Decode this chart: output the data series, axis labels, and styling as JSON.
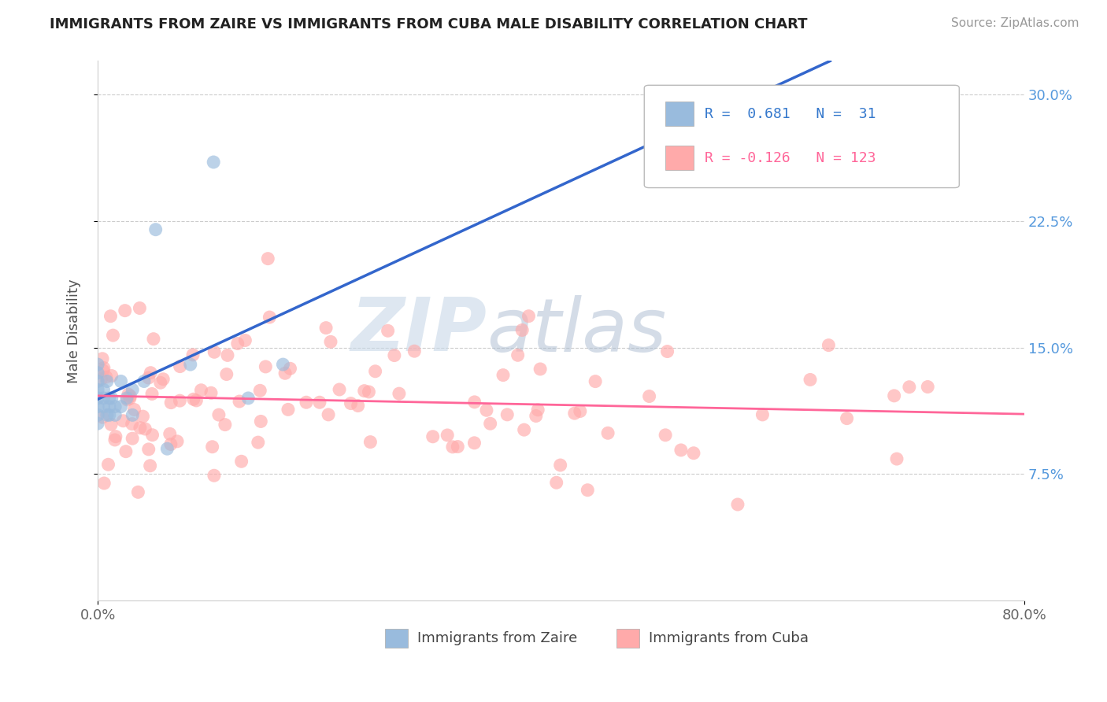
{
  "title": "IMMIGRANTS FROM ZAIRE VS IMMIGRANTS FROM CUBA MALE DISABILITY CORRELATION CHART",
  "source": "Source: ZipAtlas.com",
  "ylabel": "Male Disability",
  "x_min": 0.0,
  "x_max": 0.8,
  "y_min": 0.0,
  "y_max": 0.32,
  "y_ticks": [
    0.075,
    0.15,
    0.225,
    0.3
  ],
  "y_tick_labels": [
    "7.5%",
    "15.0%",
    "22.5%",
    "30.0%"
  ],
  "color_zaire": "#99BBDD",
  "color_cuba": "#FFAAAA",
  "color_line_zaire": "#3366CC",
  "color_line_cuba": "#FF6699",
  "watermark_zip": "ZIP",
  "watermark_atlas": "atlas",
  "legend_text_zaire": "R =  0.681   N =  31",
  "legend_text_cuba": "R = -0.126   N = 123",
  "legend_color_zaire": "#3377CC",
  "legend_color_cuba": "#FF6699",
  "bottom_label_zaire": "Immigrants from Zaire",
  "bottom_label_cuba": "Immigrants from Cuba"
}
